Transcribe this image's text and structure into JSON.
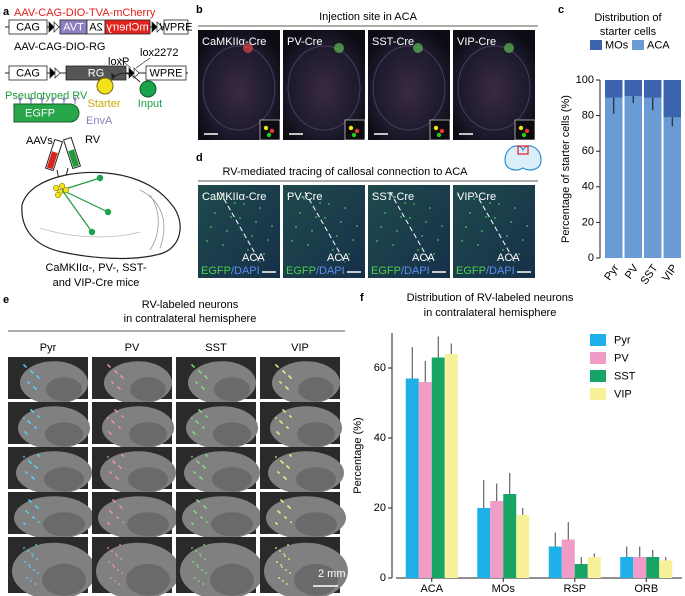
{
  "panel_labels": [
    "a",
    "b",
    "c",
    "d",
    "e",
    "f"
  ],
  "a_panel": {
    "construct1": "AAV-CAG-DIO-TVA-mCherry",
    "construct1_parts": [
      "CAG",
      "TVA",
      "2A",
      "mCherry",
      "WPRE"
    ],
    "construct2": "AAV-CAG-DIO-RG",
    "construct2_parts": [
      "CAG",
      "RG",
      "WPRE"
    ],
    "loxp": "loxP",
    "lox2272": "lox2272",
    "virus": "Pseudotyped RV",
    "egfp": "EGFP",
    "enva": "EnvA",
    "starter": "Starter",
    "input": "Input",
    "aavs": "AAVs",
    "rv": "RV",
    "mice": [
      "CaMKIIα-, PV-, SST-",
      "and VIP-Cre mice"
    ]
  },
  "b_panel": {
    "title": "Injection site in ACA",
    "images": [
      "CaMKIIα-Cre",
      "PV-Cre",
      "SST-Cre",
      "VIP-Cre"
    ]
  },
  "d_panel": {
    "title": "RV-mediated tracing of callosal connection to ACA",
    "images": [
      "CaMKIIα-Cre",
      "PV-Cre",
      "SST-Cre",
      "VIP-Cre"
    ],
    "region": "ACA",
    "stain": [
      "EGFP",
      "/DAPI"
    ]
  },
  "e_panel": {
    "title": [
      "RV-labeled neurons",
      "in contralateral hemisphere"
    ],
    "columns": [
      "Pyr",
      "PV",
      "SST",
      "VIP"
    ],
    "scale": "2 mm"
  },
  "chart_data": [
    {
      "type": "stacked_bar",
      "title": [
        "Distribution of",
        "starter cells"
      ],
      "y_label": "Percentage of starter cells (%)",
      "categories": [
        "Pyr",
        "PV",
        "SST",
        "VIP"
      ],
      "series": [
        {
          "name": "MOs",
          "color": "#3c63ad",
          "values": [
            10,
            9,
            10,
            21
          ]
        },
        {
          "name": "ACA",
          "color": "#6b9bd4",
          "values": [
            90,
            91,
            90,
            79
          ],
          "errors": [
            9,
            4,
            7,
            5
          ]
        }
      ],
      "ylim": [
        0,
        100
      ],
      "yticks": [
        0,
        20,
        40,
        60,
        80,
        100
      ]
    },
    {
      "type": "bar",
      "title": [
        "Distribution of RV-labeled neurons",
        "in contralateral hemisphere"
      ],
      "y_label": "Percentage (%)",
      "categories": [
        "ACA",
        "MOs",
        "RSP",
        "ORB"
      ],
      "series": [
        {
          "name": "Pyr",
          "color": "#1eb0e8",
          "values": [
            57,
            20,
            9,
            6
          ],
          "errors": [
            9,
            8,
            4,
            3
          ]
        },
        {
          "name": "PV",
          "color": "#f09cc6",
          "values": [
            56,
            22,
            11,
            6
          ],
          "errors": [
            6,
            5,
            5,
            3
          ]
        },
        {
          "name": "SST",
          "color": "#17a566",
          "values": [
            63,
            24,
            4,
            6
          ],
          "errors": [
            6,
            6,
            2,
            2
          ]
        },
        {
          "name": "VIP",
          "color": "#f7f19a",
          "values": [
            64,
            18,
            6,
            5
          ],
          "errors": [
            3,
            2,
            1,
            1
          ]
        }
      ],
      "ylim": [
        0,
        70
      ],
      "yticks": [
        0,
        20,
        40,
        60
      ]
    }
  ]
}
